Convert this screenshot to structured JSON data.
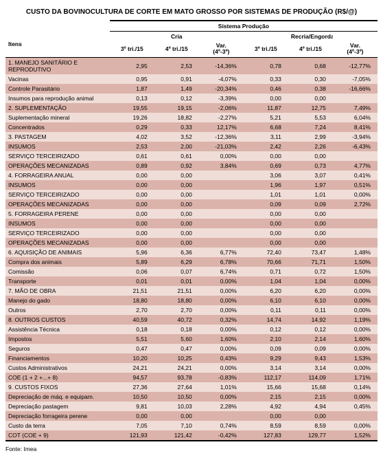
{
  "title": "CUSTO DA BOVINOCULTURA DE CORTE EM MATO GROSSO POR SISTEMAS DE PRODUÇÃO (R$/@)",
  "source": "Fonte: Imea",
  "header": {
    "sistema": "Sistema Produção",
    "itens": "Itens",
    "groups": [
      "Cria",
      "Recria/Engorda"
    ],
    "cols": [
      "3º tri./15",
      "4º tri./15",
      "Var.\n(4º-3º)",
      "3º tri./15",
      "4º tri./15",
      "Var.\n(4º-3º)"
    ]
  },
  "rows": [
    {
      "shade": "dark",
      "label": "1. MANEJO SANITÁRIO E REPRODUTIVO",
      "c": [
        "2,95",
        "2,53",
        "-14,36%",
        "0,78",
        "0,68",
        "-12,77%"
      ]
    },
    {
      "shade": "light",
      "label": "Vacinas",
      "c": [
        "0,95",
        "0,91",
        "-4,07%",
        "0,33",
        "0,30",
        "-7,05%"
      ]
    },
    {
      "shade": "dark",
      "label": "Controle Parasitário",
      "c": [
        "1,87",
        "1,49",
        "-20,34%",
        "0,46",
        "0,38",
        "-16,66%"
      ]
    },
    {
      "shade": "light",
      "label": "Insumos para reprodução animal",
      "c": [
        "0,13",
        "0,12",
        "-3,39%",
        "0,00",
        "0,00",
        ""
      ]
    },
    {
      "shade": "dark",
      "label": "2. SUPLEMENTAÇÃO",
      "c": [
        "19,55",
        "19,15",
        "-2,06%",
        "11,87",
        "12,75",
        "7,49%"
      ]
    },
    {
      "shade": "light",
      "label": "Suplementação mineral",
      "c": [
        "19,26",
        "18,82",
        "-2,27%",
        "5,21",
        "5,53",
        "6,04%"
      ]
    },
    {
      "shade": "dark",
      "label": "Concentrados",
      "c": [
        "0,29",
        "0,33",
        "12,17%",
        "6,68",
        "7,24",
        "8,41%"
      ]
    },
    {
      "shade": "light",
      "label": "3. PASTAGEM",
      "c": [
        "4,02",
        "3,52",
        "-12,36%",
        "3,11",
        "2,99",
        "-3,94%"
      ]
    },
    {
      "shade": "dark",
      "label": "INSUMOS",
      "c": [
        "2,53",
        "2,00",
        "-21,03%",
        "2,42",
        "2,26",
        "-6,43%"
      ]
    },
    {
      "shade": "light",
      "label": "SERVIÇO TERCEIRIZADO",
      "c": [
        "0,61",
        "0,61",
        "0,00%",
        "0,00",
        "0,00",
        ""
      ]
    },
    {
      "shade": "dark",
      "label": "OPERAÇÕES MECANIZADAS",
      "c": [
        "0,89",
        "0,92",
        "3,84%",
        "0,69",
        "0,73",
        "4,77%"
      ]
    },
    {
      "shade": "light",
      "label": "4. FORRAGEIRA ANUAL",
      "c": [
        "0,00",
        "0,00",
        "",
        "3,06",
        "3,07",
        "0,41%"
      ]
    },
    {
      "shade": "dark",
      "label": "INSUMOS",
      "c": [
        "0,00",
        "0,00",
        "",
        "1,96",
        "1,97",
        "0,51%"
      ]
    },
    {
      "shade": "light",
      "label": "SERVIÇO TERCEIRIZADO",
      "c": [
        "0,00",
        "0,00",
        "",
        "1,01",
        "1,01",
        "0,00%"
      ]
    },
    {
      "shade": "dark",
      "label": "OPERAÇÕES MECANIZADAS",
      "c": [
        "0,00",
        "0,00",
        "",
        "0,09",
        "0,09",
        "2,72%"
      ]
    },
    {
      "shade": "light",
      "label": "5. FORRAGEIRA PERENE",
      "c": [
        "0,00",
        "0,00",
        "",
        "0,00",
        "0,00",
        ""
      ]
    },
    {
      "shade": "dark",
      "label": "INSUMOS",
      "c": [
        "0,00",
        "0,00",
        "",
        "0,00",
        "0,00",
        ""
      ]
    },
    {
      "shade": "light",
      "label": "SERVIÇO TERCEIRIZADO",
      "c": [
        "0,00",
        "0,00",
        "",
        "0,00",
        "0,00",
        ""
      ]
    },
    {
      "shade": "dark",
      "label": "OPERAÇÕES MECANIZADAS",
      "c": [
        "0,00",
        "0,00",
        "",
        "0,00",
        "0,00",
        ""
      ]
    },
    {
      "shade": "light",
      "label": "6. AQUISIÇÃO DE ANIMAIS",
      "c": [
        "5,96",
        "6,36",
        "6,77%",
        "72,40",
        "73,47",
        "1,48%"
      ]
    },
    {
      "shade": "dark",
      "label": "Compra dos animais",
      "c": [
        "5,89",
        "6,29",
        "6,78%",
        "70,66",
        "71,71",
        "1,50%"
      ]
    },
    {
      "shade": "light",
      "label": "Comissão",
      "c": [
        "0,06",
        "0,07",
        "6,74%",
        "0,71",
        "0,72",
        "1,50%"
      ]
    },
    {
      "shade": "dark",
      "label": "Transporte",
      "c": [
        "0,01",
        "0,01",
        "0,00%",
        "1,04",
        "1,04",
        "0,00%"
      ]
    },
    {
      "shade": "light",
      "label": "7. MÃO DE OBRA",
      "c": [
        "21,51",
        "21,51",
        "0,00%",
        "6,20",
        "6,20",
        "0,00%"
      ]
    },
    {
      "shade": "dark",
      "label": "Manejo do gado",
      "c": [
        "18,80",
        "18,80",
        "0,00%",
        "6,10",
        "6,10",
        "0,00%"
      ]
    },
    {
      "shade": "light",
      "label": "Outros",
      "c": [
        "2,70",
        "2,70",
        "0,00%",
        "0,11",
        "0,11",
        "0,00%"
      ]
    },
    {
      "shade": "dark",
      "label": "8. OUTROS CUSTOS",
      "c": [
        "40,59",
        "40,72",
        "0,32%",
        "14,74",
        "14,92",
        "1,19%"
      ]
    },
    {
      "shade": "light",
      "label": "Assistência Técnica",
      "c": [
        "0,18",
        "0,18",
        "0,00%",
        "0,12",
        "0,12",
        "0,00%"
      ]
    },
    {
      "shade": "dark",
      "label": "Impostos",
      "c": [
        "5,51",
        "5,60",
        "1,60%",
        "2,10",
        "2,14",
        "1,60%"
      ]
    },
    {
      "shade": "light",
      "label": "Seguros",
      "c": [
        "0,47",
        "0,47",
        "0,00%",
        "0,09",
        "0,09",
        "0,00%"
      ]
    },
    {
      "shade": "dark",
      "label": "Financiamentos",
      "c": [
        "10,20",
        "10,25",
        "0,43%",
        "9,29",
        "9,43",
        "1,53%"
      ]
    },
    {
      "shade": "light",
      "label": "Custos Administrativos",
      "c": [
        "24,21",
        "24,21",
        "0,00%",
        "3,14",
        "3,14",
        "0,00%"
      ]
    },
    {
      "shade": "dark",
      "label": "COE (1 + 2 +...+ 8)",
      "c": [
        "94,57",
        "93,78",
        "-0,83%",
        "112,17",
        "114,09",
        "1,71%"
      ]
    },
    {
      "shade": "light",
      "label": "9. CUSTOS FIXOS",
      "c": [
        "27,36",
        "27,64",
        "1,01%",
        "15,66",
        "15,68",
        "0,14%"
      ]
    },
    {
      "shade": "dark",
      "label": "Depreciação de máq. e equipam.",
      "c": [
        "10,50",
        "10,50",
        "0,00%",
        "2,15",
        "2,15",
        "0,00%"
      ]
    },
    {
      "shade": "light",
      "label": "Depreciação pastagem",
      "c": [
        "9,81",
        "10,03",
        "2,28%",
        "4,92",
        "4,94",
        "0,45%"
      ]
    },
    {
      "shade": "dark",
      "label": "Depreciação forrageira perene",
      "c": [
        "0,00",
        "0,00",
        "",
        "0,00",
        "0,00",
        ""
      ]
    },
    {
      "shade": "light",
      "label": "Custo da terra",
      "c": [
        "7,05",
        "7,10",
        "0,74%",
        "8,59",
        "8,59",
        "0,00%"
      ]
    },
    {
      "shade": "dark",
      "label": "COT (COE + 9)",
      "c": [
        "121,93",
        "121,42",
        "-0,42%",
        "127,83",
        "129,77",
        "1,52%"
      ]
    }
  ]
}
